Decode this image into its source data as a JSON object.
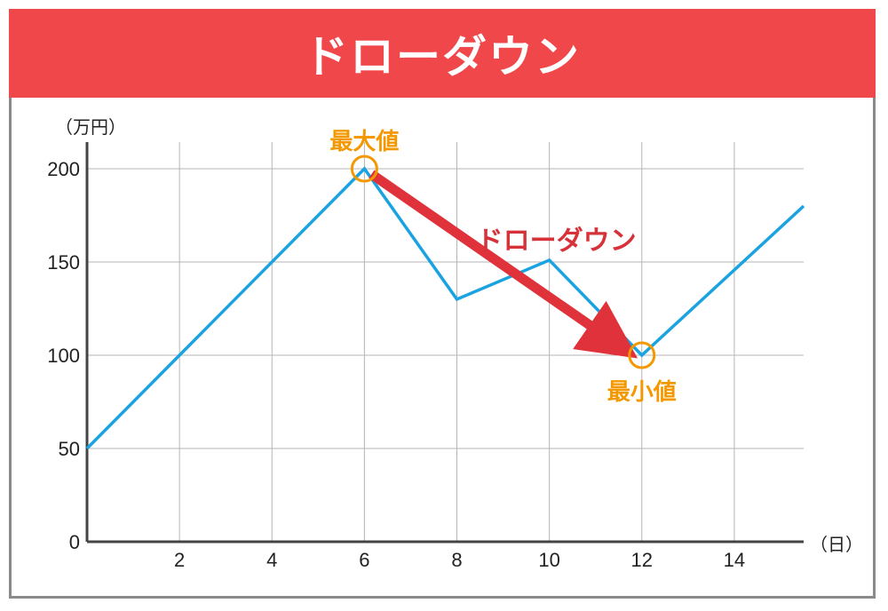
{
  "header": {
    "title": "ドローダウン"
  },
  "chart_data": {
    "type": "line",
    "title": "ドローダウン",
    "y_unit": "（万円）",
    "x_unit": "（日）",
    "x_ticks": [
      2,
      4,
      6,
      8,
      10,
      12,
      14
    ],
    "y_ticks": [
      0,
      50,
      100,
      150,
      200
    ],
    "xlim": [
      0,
      15.5
    ],
    "ylim": [
      0,
      200
    ],
    "grid": true,
    "line_color": "#1aa3e0",
    "series": [
      {
        "x": [
          0,
          6,
          8,
          10,
          12,
          15.5
        ],
        "y": [
          50,
          200,
          130,
          151,
          100,
          180
        ]
      }
    ],
    "annotations": {
      "max_label": "最大値",
      "min_label": "最小値",
      "drawdown_label": "ドローダウン",
      "max_point": {
        "x": 6,
        "y": 200
      },
      "min_point": {
        "x": 12,
        "y": 100
      }
    },
    "colors": {
      "marker": "#f39800",
      "arrow": "#e0323a"
    }
  }
}
